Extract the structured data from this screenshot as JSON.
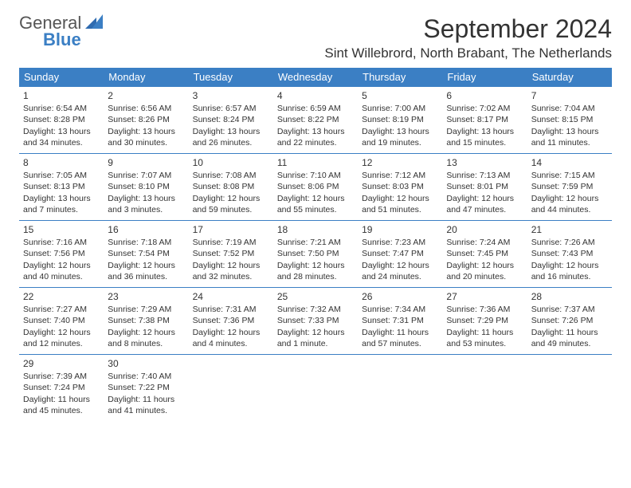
{
  "logo": {
    "text_general": "General",
    "text_blue": "Blue"
  },
  "title": "September 2024",
  "location": "Sint Willebrord, North Brabant, The Netherlands",
  "colors": {
    "header_bg": "#3b7fc4",
    "header_fg": "#ffffff",
    "divider": "#3b7fc4",
    "text": "#333333",
    "logo_gray": "#555555",
    "logo_blue": "#3b7fc4",
    "background": "#ffffff"
  },
  "typography": {
    "title_fontsize": 32,
    "location_fontsize": 17,
    "dayheader_fontsize": 13,
    "cell_fontsize": 10.5,
    "logo_fontsize": 22
  },
  "layout": {
    "columns": 7,
    "rows": 5,
    "start_weekday": "Sunday"
  },
  "weekdays": [
    "Sunday",
    "Monday",
    "Tuesday",
    "Wednesday",
    "Thursday",
    "Friday",
    "Saturday"
  ],
  "days": [
    {
      "n": 1,
      "sunrise": "6:54 AM",
      "sunset": "8:28 PM",
      "daylight": "13 hours and 34 minutes."
    },
    {
      "n": 2,
      "sunrise": "6:56 AM",
      "sunset": "8:26 PM",
      "daylight": "13 hours and 30 minutes."
    },
    {
      "n": 3,
      "sunrise": "6:57 AM",
      "sunset": "8:24 PM",
      "daylight": "13 hours and 26 minutes."
    },
    {
      "n": 4,
      "sunrise": "6:59 AM",
      "sunset": "8:22 PM",
      "daylight": "13 hours and 22 minutes."
    },
    {
      "n": 5,
      "sunrise": "7:00 AM",
      "sunset": "8:19 PM",
      "daylight": "13 hours and 19 minutes."
    },
    {
      "n": 6,
      "sunrise": "7:02 AM",
      "sunset": "8:17 PM",
      "daylight": "13 hours and 15 minutes."
    },
    {
      "n": 7,
      "sunrise": "7:04 AM",
      "sunset": "8:15 PM",
      "daylight": "13 hours and 11 minutes."
    },
    {
      "n": 8,
      "sunrise": "7:05 AM",
      "sunset": "8:13 PM",
      "daylight": "13 hours and 7 minutes."
    },
    {
      "n": 9,
      "sunrise": "7:07 AM",
      "sunset": "8:10 PM",
      "daylight": "13 hours and 3 minutes."
    },
    {
      "n": 10,
      "sunrise": "7:08 AM",
      "sunset": "8:08 PM",
      "daylight": "12 hours and 59 minutes."
    },
    {
      "n": 11,
      "sunrise": "7:10 AM",
      "sunset": "8:06 PM",
      "daylight": "12 hours and 55 minutes."
    },
    {
      "n": 12,
      "sunrise": "7:12 AM",
      "sunset": "8:03 PM",
      "daylight": "12 hours and 51 minutes."
    },
    {
      "n": 13,
      "sunrise": "7:13 AM",
      "sunset": "8:01 PM",
      "daylight": "12 hours and 47 minutes."
    },
    {
      "n": 14,
      "sunrise": "7:15 AM",
      "sunset": "7:59 PM",
      "daylight": "12 hours and 44 minutes."
    },
    {
      "n": 15,
      "sunrise": "7:16 AM",
      "sunset": "7:56 PM",
      "daylight": "12 hours and 40 minutes."
    },
    {
      "n": 16,
      "sunrise": "7:18 AM",
      "sunset": "7:54 PM",
      "daylight": "12 hours and 36 minutes."
    },
    {
      "n": 17,
      "sunrise": "7:19 AM",
      "sunset": "7:52 PM",
      "daylight": "12 hours and 32 minutes."
    },
    {
      "n": 18,
      "sunrise": "7:21 AM",
      "sunset": "7:50 PM",
      "daylight": "12 hours and 28 minutes."
    },
    {
      "n": 19,
      "sunrise": "7:23 AM",
      "sunset": "7:47 PM",
      "daylight": "12 hours and 24 minutes."
    },
    {
      "n": 20,
      "sunrise": "7:24 AM",
      "sunset": "7:45 PM",
      "daylight": "12 hours and 20 minutes."
    },
    {
      "n": 21,
      "sunrise": "7:26 AM",
      "sunset": "7:43 PM",
      "daylight": "12 hours and 16 minutes."
    },
    {
      "n": 22,
      "sunrise": "7:27 AM",
      "sunset": "7:40 PM",
      "daylight": "12 hours and 12 minutes."
    },
    {
      "n": 23,
      "sunrise": "7:29 AM",
      "sunset": "7:38 PM",
      "daylight": "12 hours and 8 minutes."
    },
    {
      "n": 24,
      "sunrise": "7:31 AM",
      "sunset": "7:36 PM",
      "daylight": "12 hours and 4 minutes."
    },
    {
      "n": 25,
      "sunrise": "7:32 AM",
      "sunset": "7:33 PM",
      "daylight": "12 hours and 1 minute."
    },
    {
      "n": 26,
      "sunrise": "7:34 AM",
      "sunset": "7:31 PM",
      "daylight": "11 hours and 57 minutes."
    },
    {
      "n": 27,
      "sunrise": "7:36 AM",
      "sunset": "7:29 PM",
      "daylight": "11 hours and 53 minutes."
    },
    {
      "n": 28,
      "sunrise": "7:37 AM",
      "sunset": "7:26 PM",
      "daylight": "11 hours and 49 minutes."
    },
    {
      "n": 29,
      "sunrise": "7:39 AM",
      "sunset": "7:24 PM",
      "daylight": "11 hours and 45 minutes."
    },
    {
      "n": 30,
      "sunrise": "7:40 AM",
      "sunset": "7:22 PM",
      "daylight": "11 hours and 41 minutes."
    }
  ],
  "labels": {
    "sunrise_prefix": "Sunrise: ",
    "sunset_prefix": "Sunset: ",
    "daylight_prefix": "Daylight: "
  }
}
